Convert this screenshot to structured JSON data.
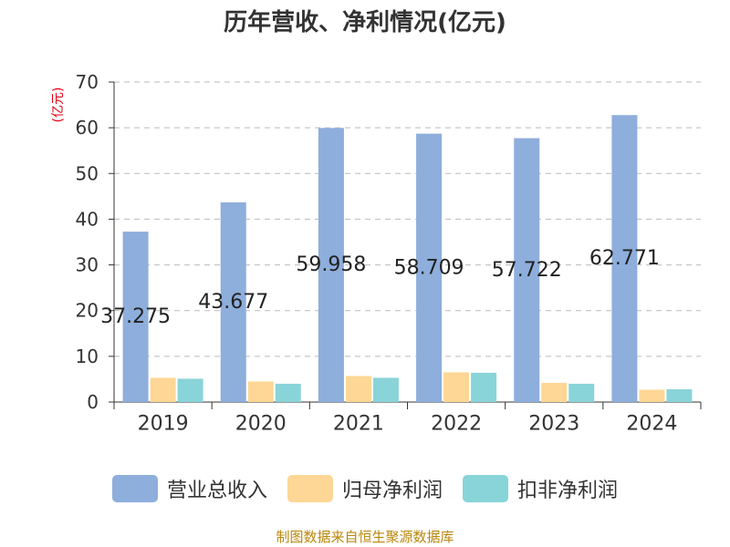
{
  "chart_data": {
    "type": "bar",
    "title": "历年营收、净利情况(亿元)",
    "unit": "(亿元)",
    "categories": [
      "2019",
      "2020",
      "2021",
      "2022",
      "2023",
      "2024"
    ],
    "series": [
      {
        "name": "营业总收入",
        "color": "#8eaedc",
        "values": [
          37.275,
          43.677,
          59.958,
          58.709,
          57.722,
          62.771
        ]
      },
      {
        "name": "归母净利润",
        "color": "#fed796",
        "values": [
          5.3,
          4.5,
          5.7,
          6.5,
          4.2,
          2.7
        ]
      },
      {
        "name": "扣非净利润",
        "color": "#89d4d9",
        "values": [
          5.1,
          4.0,
          5.3,
          6.4,
          4.0,
          2.8
        ]
      }
    ],
    "data_labels": [
      "37.275",
      "43.677",
      "59.958",
      "58.709",
      "57.722",
      "62.771"
    ],
    "y_ticks": [
      "0",
      "10",
      "20",
      "30",
      "40",
      "50",
      "60",
      "70"
    ],
    "ylim": [
      0,
      70
    ],
    "grid": true,
    "legend_position": "bottom"
  },
  "source": "制图数据来自恒生聚源数据库"
}
